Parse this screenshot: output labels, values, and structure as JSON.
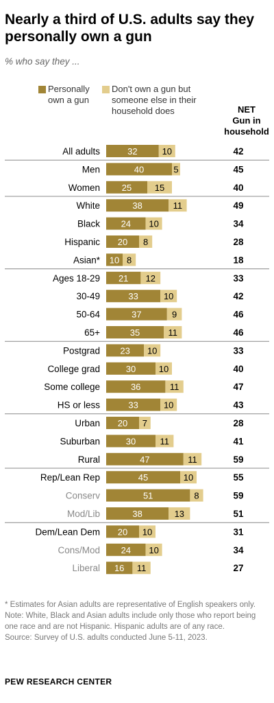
{
  "title": "Nearly a third of U.S. adults say they personally own a gun",
  "subtitle": "% who say they ...",
  "legend": {
    "own_line1": "Personally",
    "own_line2": "own a gun",
    "other_line1": "Don't own a gun but",
    "other_line2": "someone else in their",
    "other_line3": "household does"
  },
  "net_header": {
    "line1": "NET",
    "line2": "Gun in",
    "line3": "household"
  },
  "colors": {
    "own": "#a18536",
    "other": "#e3cd8d",
    "sublabel": "#888888",
    "divider": "#888888"
  },
  "chart_data": {
    "type": "bar",
    "stacked": true,
    "orientation": "horizontal",
    "series_names": [
      "Personally own a gun",
      "Don't own a gun but someone else in their household does"
    ],
    "categories": [
      "All adults",
      "Men",
      "Women",
      "White",
      "Black",
      "Hispanic",
      "Asian*",
      "Ages 18-29",
      "30-49",
      "50-64",
      "65+",
      "Postgrad",
      "College grad",
      "Some college",
      "HS or less",
      "Urban",
      "Suburban",
      "Rural",
      "Rep/Lean Rep",
      "Conserv",
      "Mod/Lib",
      "Dem/Lean Dem",
      "Cons/Mod",
      "Liberal"
    ],
    "own": [
      32,
      40,
      25,
      38,
      24,
      20,
      10,
      21,
      33,
      37,
      35,
      23,
      30,
      36,
      33,
      20,
      30,
      47,
      45,
      51,
      38,
      20,
      24,
      16
    ],
    "other": [
      10,
      5,
      15,
      11,
      10,
      8,
      8,
      12,
      10,
      9,
      11,
      10,
      10,
      11,
      10,
      7,
      11,
      11,
      10,
      8,
      13,
      10,
      10,
      11
    ],
    "net": [
      42,
      45,
      40,
      49,
      34,
      28,
      18,
      33,
      42,
      46,
      46,
      33,
      40,
      47,
      43,
      28,
      41,
      59,
      55,
      59,
      51,
      31,
      34,
      27
    ],
    "sublabel_rows": [
      19,
      20,
      22,
      23
    ],
    "divider_after": [
      0,
      2,
      6,
      10,
      14,
      17,
      20
    ]
  },
  "footnotes": {
    "asian": "* Estimates for Asian adults are representative of English speakers only.",
    "note": "Note: White, Black and Asian adults include only those who report being one race and are not Hispanic. Hispanic adults are of any race.",
    "source": "Source: Survey of U.S. adults conducted June 5-11, 2023."
  },
  "org": "PEW RESEARCH CENTER"
}
